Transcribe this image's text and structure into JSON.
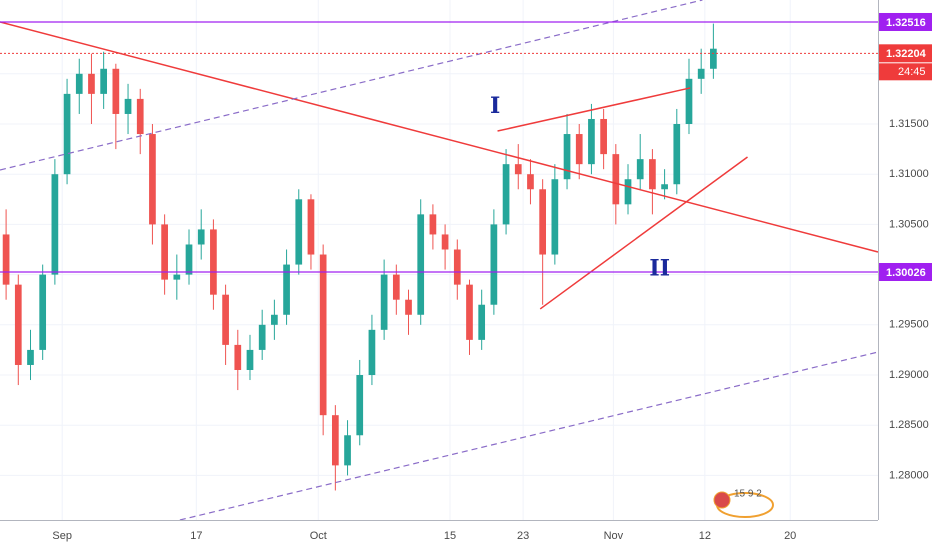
{
  "chart_data": {
    "type": "candlestick",
    "x": [
      0,
      1,
      2,
      3,
      4,
      5,
      6,
      7,
      8,
      9,
      10,
      11,
      12,
      13,
      14,
      15,
      16,
      17,
      18,
      19,
      20,
      21,
      22,
      23,
      24,
      25,
      26,
      27,
      28,
      29,
      30,
      31,
      32,
      33,
      34,
      35,
      36,
      37,
      38,
      39,
      40,
      41,
      42,
      43,
      44,
      45,
      46,
      47,
      48,
      49,
      50,
      51,
      52,
      53,
      54,
      55,
      56,
      57,
      58
    ],
    "open": [
      1.304,
      1.299,
      1.291,
      1.2925,
      1.3,
      1.31,
      1.318,
      1.32,
      1.318,
      1.3205,
      1.316,
      1.3175,
      1.314,
      1.305,
      1.2995,
      1.3,
      1.303,
      1.3045,
      1.298,
      1.293,
      1.2905,
      1.2925,
      1.295,
      1.296,
      1.301,
      1.3075,
      1.302,
      1.286,
      1.281,
      1.284,
      1.29,
      1.2945,
      1.3,
      1.2975,
      1.296,
      1.306,
      1.304,
      1.3025,
      1.299,
      1.2935,
      1.297,
      1.305,
      1.311,
      1.31,
      1.3085,
      1.302,
      1.3095,
      1.314,
      1.311,
      1.3155,
      1.312,
      1.307,
      1.3095,
      1.3115,
      1.3085,
      1.309,
      1.315,
      1.3195,
      1.3205
    ],
    "high": [
      1.3065,
      1.3,
      1.2945,
      1.301,
      1.3115,
      1.3195,
      1.3215,
      1.322,
      1.3222,
      1.321,
      1.319,
      1.3185,
      1.315,
      1.306,
      1.302,
      1.3045,
      1.3065,
      1.3055,
      1.299,
      1.2945,
      1.294,
      1.2965,
      1.2975,
      1.3025,
      1.3085,
      1.308,
      1.303,
      1.287,
      1.2855,
      1.2915,
      1.296,
      1.3015,
      1.301,
      1.2985,
      1.3075,
      1.307,
      1.305,
      1.3035,
      1.2995,
      1.2985,
      1.3065,
      1.3125,
      1.313,
      1.3115,
      1.3095,
      1.311,
      1.316,
      1.315,
      1.317,
      1.3165,
      1.313,
      1.311,
      1.314,
      1.3125,
      1.3105,
      1.3165,
      1.3215,
      1.3225,
      1.325
    ],
    "low": [
      1.2975,
      1.289,
      1.2895,
      1.2915,
      1.299,
      1.309,
      1.316,
      1.315,
      1.3165,
      1.3125,
      1.314,
      1.312,
      1.303,
      1.298,
      1.2975,
      1.299,
      1.3015,
      1.2965,
      1.291,
      1.2885,
      1.2895,
      1.2915,
      1.2935,
      1.295,
      1.3,
      1.3005,
      1.284,
      1.2785,
      1.28,
      1.283,
      1.289,
      1.2935,
      1.296,
      1.294,
      1.295,
      1.3025,
      1.3005,
      1.2975,
      1.292,
      1.2925,
      1.296,
      1.304,
      1.3085,
      1.307,
      1.297,
      1.301,
      1.3085,
      1.3095,
      1.31,
      1.3105,
      1.305,
      1.306,
      1.3085,
      1.306,
      1.3075,
      1.308,
      1.314,
      1.318,
      1.3195
    ],
    "close": [
      1.299,
      1.291,
      1.2925,
      1.3,
      1.31,
      1.318,
      1.32,
      1.318,
      1.3205,
      1.316,
      1.3175,
      1.314,
      1.305,
      1.2995,
      1.3,
      1.303,
      1.3045,
      1.298,
      1.293,
      1.2905,
      1.2925,
      1.295,
      1.296,
      1.301,
      1.3075,
      1.302,
      1.286,
      1.281,
      1.284,
      1.29,
      1.2945,
      1.3,
      1.2975,
      1.296,
      1.306,
      1.304,
      1.3025,
      1.299,
      1.2935,
      1.297,
      1.305,
      1.311,
      1.31,
      1.3085,
      1.302,
      1.3095,
      1.314,
      1.311,
      1.3155,
      1.312,
      1.307,
      1.3095,
      1.3115,
      1.3085,
      1.309,
      1.315,
      1.3195,
      1.3205,
      1.3225
    ],
    "up_color": "#26a69a",
    "down_color": "#ef5350",
    "xlim": [
      -0.5,
      71.5
    ],
    "xticks": [
      {
        "value": 4.6,
        "label": "Sep"
      },
      {
        "value": 15.6,
        "label": "17"
      },
      {
        "value": 25.6,
        "label": "Oct"
      },
      {
        "value": 36.4,
        "label": "15"
      },
      {
        "value": 42.4,
        "label": "23"
      },
      {
        "value": 49.8,
        "label": "Nov"
      },
      {
        "value": 57.3,
        "label": "12"
      },
      {
        "value": 64.3,
        "label": "20"
      }
    ],
    "ylim": [
      1.27556,
      1.32735
    ],
    "yticks": [
      {
        "value": 1.28,
        "label": "1.28000"
      },
      {
        "value": 1.285,
        "label": "1.28500"
      },
      {
        "value": 1.29,
        "label": "1.29000"
      },
      {
        "value": 1.295,
        "label": "1.29500"
      },
      {
        "value": 1.3,
        "label": "1.30000"
      },
      {
        "value": 1.305,
        "label": "1.30500"
      },
      {
        "value": 1.31,
        "label": "1.31000"
      },
      {
        "value": 1.315,
        "label": "1.31500"
      },
      {
        "value": 1.32,
        "label": "1.32000"
      }
    ],
    "grid": true,
    "hlines": [
      {
        "value": 1.32516,
        "color": "#a020f0",
        "dotted": false
      },
      {
        "value": 1.30026,
        "color": "#a020f0",
        "dotted": false
      },
      {
        "value": 1.32204,
        "color": "#ef3b3b",
        "dotted": true
      }
    ],
    "countdown": "24:45",
    "trendlines": [
      {
        "x": [
          -0.5,
          71.5
        ],
        "y": [
          1.32516,
          1.30225
        ],
        "color": "#ef3b3b",
        "dashed": false
      },
      {
        "x": [
          40.3,
          56.1
        ],
        "y": [
          1.3143,
          1.31859
        ],
        "color": "#ef3b3b",
        "dashed": false
      },
      {
        "x": [
          43.8,
          60.8
        ],
        "y": [
          1.29658,
          1.31171
        ],
        "color": "#ef3b3b",
        "dashed": false
      },
      {
        "x": [
          -0.5,
          57.1
        ],
        "y": [
          1.31042,
          1.32735
        ],
        "color": "#8a6cc8",
        "dashed": true
      },
      {
        "x": [
          14.25,
          71.5
        ],
        "y": [
          1.27556,
          1.29229
        ],
        "color": "#8a6cc8",
        "dashed": true
      }
    ],
    "annotations": [
      {
        "text": "I",
        "x": 40.1,
        "y": 1.3167
      },
      {
        "text": "II",
        "x": 53.6,
        "y": 1.3005
      }
    ],
    "logo_text": "15 9 2"
  }
}
